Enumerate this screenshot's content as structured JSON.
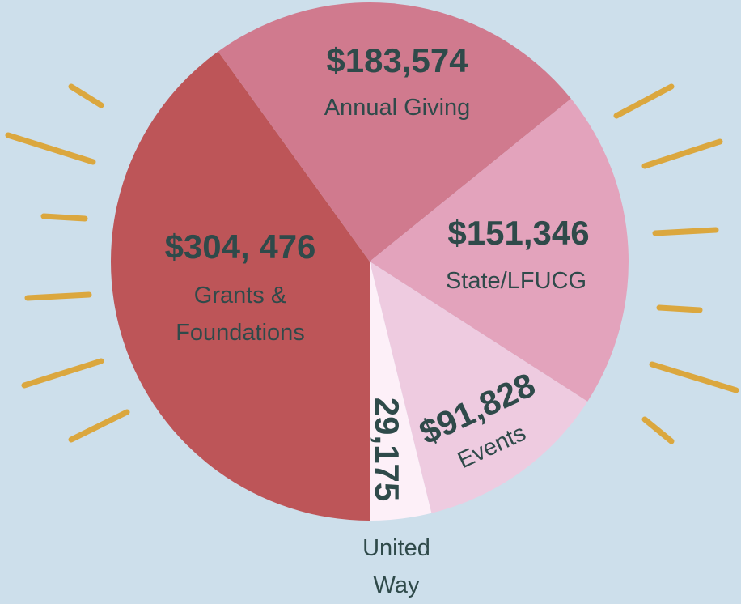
{
  "chart_data": {
    "type": "pie",
    "categories": [
      "Grants & Foundations",
      "Annual Giving",
      "State/LFUCG",
      "Events",
      "United Way"
    ],
    "values": [
      304476,
      183574,
      151346,
      91828,
      29175
    ],
    "value_labels": [
      "$304, 476",
      "$183,574",
      "$151,346",
      "$91,828",
      "29,175"
    ],
    "colors": [
      "#bd5558",
      "#d07a8e",
      "#e3a3bc",
      "#eecbe0",
      "#fdf0f8"
    ]
  }
}
